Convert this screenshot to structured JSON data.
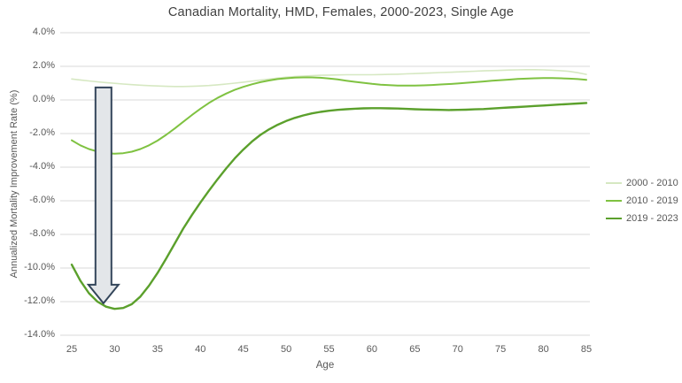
{
  "chart_data": {
    "type": "line",
    "title": "Canadian Mortality, HMD, Females, 2000-2023, Single Age",
    "xlabel": "Age",
    "ylabel": "Annualized Mortality Improvement Rate (%)",
    "legend_position": "right",
    "grid": "horizontal-only",
    "x_ticks": [
      25,
      30,
      35,
      40,
      45,
      50,
      55,
      60,
      65,
      70,
      75,
      80,
      85
    ],
    "y_ticks": [
      {
        "value": 4.0,
        "label": "4.0%"
      },
      {
        "value": 2.0,
        "label": "2.0%"
      },
      {
        "value": 0.0,
        "label": "0.0%"
      },
      {
        "value": -2.0,
        "label": "-2.0%"
      },
      {
        "value": -4.0,
        "label": "-4.0%"
      },
      {
        "value": -6.0,
        "label": "-6.0%"
      },
      {
        "value": -8.0,
        "label": "-8.0%"
      },
      {
        "value": -10.0,
        "label": "-10.0%"
      },
      {
        "value": -12.0,
        "label": "-12.0%"
      },
      {
        "value": -14.0,
        "label": "-14.0%"
      }
    ],
    "xlim": [
      25,
      85
    ],
    "ylim": [
      -14,
      4
    ],
    "ages": [
      25,
      26,
      27,
      28,
      29,
      30,
      31,
      32,
      33,
      34,
      35,
      36,
      37,
      38,
      39,
      40,
      41,
      42,
      43,
      44,
      45,
      46,
      47,
      48,
      49,
      50,
      51,
      52,
      53,
      54,
      55,
      56,
      57,
      58,
      59,
      60,
      61,
      62,
      63,
      64,
      65,
      66,
      67,
      68,
      69,
      70,
      71,
      72,
      73,
      74,
      75,
      76,
      77,
      78,
      79,
      80,
      81,
      82,
      83,
      84,
      85
    ],
    "series": [
      {
        "name": "2000 - 2010",
        "color": "#d6e8c2",
        "stroke_width": 1.6,
        "values": [
          1.25,
          1.19,
          1.13,
          1.08,
          1.03,
          0.99,
          0.95,
          0.91,
          0.88,
          0.85,
          0.83,
          0.81,
          0.8,
          0.8,
          0.81,
          0.83,
          0.86,
          0.9,
          0.95,
          1.0,
          1.06,
          1.12,
          1.18,
          1.24,
          1.3,
          1.35,
          1.39,
          1.42,
          1.45,
          1.47,
          1.48,
          1.49,
          1.5,
          1.5,
          1.5,
          1.5,
          1.51,
          1.52,
          1.53,
          1.55,
          1.57,
          1.59,
          1.61,
          1.63,
          1.65,
          1.67,
          1.69,
          1.71,
          1.73,
          1.75,
          1.76,
          1.78,
          1.79,
          1.8,
          1.8,
          1.79,
          1.77,
          1.74,
          1.7,
          1.62,
          1.52
        ]
      },
      {
        "name": "2010 - 2019",
        "color": "#7fc241",
        "stroke_width": 2,
        "values": [
          -2.4,
          -2.7,
          -2.92,
          -3.07,
          -3.16,
          -3.2,
          -3.17,
          -3.08,
          -2.92,
          -2.7,
          -2.42,
          -2.08,
          -1.7,
          -1.3,
          -0.9,
          -0.52,
          -0.18,
          0.12,
          0.38,
          0.6,
          0.78,
          0.93,
          1.06,
          1.16,
          1.24,
          1.29,
          1.33,
          1.34,
          1.34,
          1.32,
          1.28,
          1.22,
          1.15,
          1.08,
          1.02,
          0.96,
          0.91,
          0.88,
          0.86,
          0.85,
          0.86,
          0.87,
          0.89,
          0.92,
          0.95,
          0.98,
          1.02,
          1.06,
          1.1,
          1.14,
          1.18,
          1.21,
          1.25,
          1.27,
          1.29,
          1.3,
          1.3,
          1.29,
          1.27,
          1.24,
          1.2
        ]
      },
      {
        "name": "2019 - 2023",
        "color": "#5ba02c",
        "stroke_width": 2.4,
        "values": [
          -9.8,
          -10.75,
          -11.5,
          -12.0,
          -12.3,
          -12.43,
          -12.38,
          -12.15,
          -11.7,
          -11.05,
          -10.3,
          -9.45,
          -8.55,
          -7.65,
          -6.85,
          -6.1,
          -5.4,
          -4.72,
          -4.08,
          -3.48,
          -2.95,
          -2.48,
          -2.08,
          -1.75,
          -1.48,
          -1.25,
          -1.07,
          -0.92,
          -0.8,
          -0.71,
          -0.64,
          -0.59,
          -0.55,
          -0.52,
          -0.5,
          -0.49,
          -0.49,
          -0.5,
          -0.51,
          -0.53,
          -0.55,
          -0.57,
          -0.58,
          -0.59,
          -0.6,
          -0.59,
          -0.58,
          -0.56,
          -0.54,
          -0.51,
          -0.48,
          -0.45,
          -0.42,
          -0.39,
          -0.36,
          -0.33,
          -0.3,
          -0.27,
          -0.24,
          -0.21,
          -0.18
        ]
      }
    ],
    "annotations": [
      {
        "type": "down-arrow",
        "age": 28.7,
        "value_from": 0.74,
        "value_to": -12.1,
        "fill": "#e3e6e9",
        "stroke": "#33455a"
      }
    ]
  },
  "colors": {
    "background": "#ffffff",
    "gridline": "#d9d9d9",
    "title_text": "#404040",
    "axis_text": "#595959"
  }
}
